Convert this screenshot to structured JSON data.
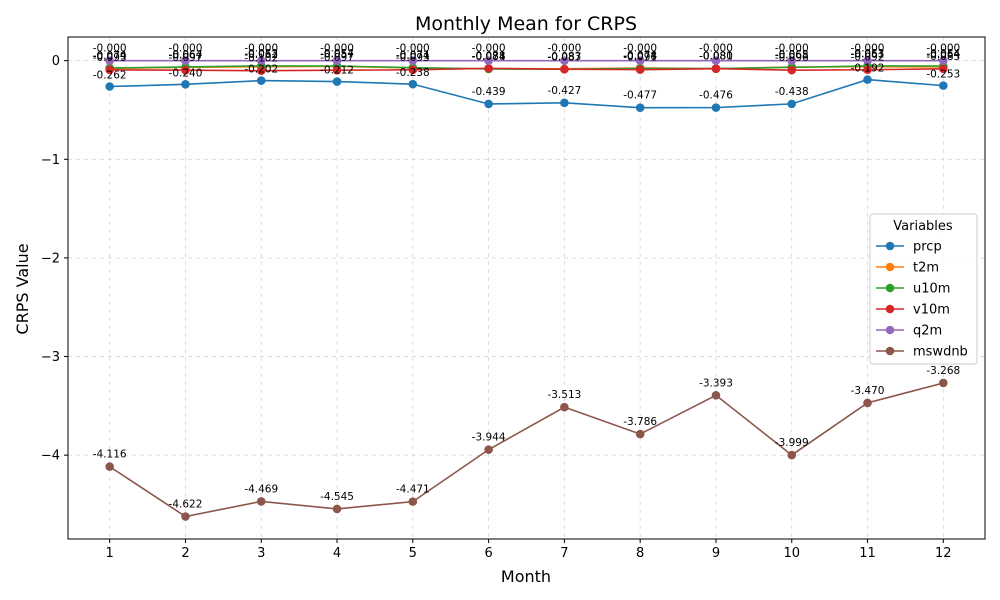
{
  "chart_data": {
    "type": "line",
    "title": "Monthly Mean for CRPS",
    "xlabel": "Month",
    "ylabel": "CRPS Value",
    "x": [
      1,
      2,
      3,
      4,
      5,
      6,
      7,
      8,
      9,
      10,
      11,
      12
    ],
    "xlim": [
      0.45,
      12.55
    ],
    "ylim": [
      -4.85,
      0.24
    ],
    "yticks": [
      0,
      -1,
      -2,
      -3,
      -4
    ],
    "ytick_labels": [
      "0",
      "−1",
      "−2",
      "−3",
      "−4"
    ],
    "grid": true,
    "legend_title": "Variables",
    "legend_position": "center-right",
    "series": [
      {
        "name": "prcp",
        "color": "#1f77b4",
        "values": [
          -0.262,
          -0.24,
          -0.202,
          -0.212,
          -0.238,
          -0.439,
          -0.427,
          -0.477,
          -0.476,
          -0.438,
          -0.192,
          -0.253
        ],
        "labels": [
          "-0.262",
          "-0.240",
          "-0.202",
          "-0.212",
          "-0.238",
          "-0.439",
          "-0.427",
          "-0.477",
          "-0.476",
          "-0.438",
          "-0.192",
          "-0.253"
        ],
        "label_pos": "below-first"
      },
      {
        "name": "t2m",
        "color": "#ff7f0e",
        "values": [
          -0.079,
          -0.067,
          -0.062,
          -0.057,
          -0.074,
          -0.081,
          -0.083,
          -0.074,
          -0.081,
          -0.065,
          -0.061,
          -0.064
        ],
        "labels": [
          "-0.079",
          "-0.067",
          "-0.062",
          "-0.057",
          "-0.074",
          "-0.081",
          "-0.083",
          "-0.074",
          "-0.081",
          "-0.065",
          "-0.061",
          "-0.064"
        ],
        "label_pos": "above"
      },
      {
        "name": "u10m",
        "color": "#2ca02c",
        "values": [
          -0.074,
          -0.064,
          -0.053,
          -0.054,
          -0.071,
          -0.084,
          -0.087,
          -0.078,
          -0.08,
          -0.068,
          -0.053,
          -0.054
        ],
        "labels": [
          "-0.074",
          "-0.064",
          "-0.053",
          "-0.054",
          "-0.071",
          "-0.084",
          "-0.087",
          "-0.078",
          "-0.080",
          "-0.068",
          "-0.053",
          "-0.054"
        ],
        "label_pos": "above"
      },
      {
        "name": "v10m",
        "color": "#d62728",
        "values": [
          -0.093,
          -0.097,
          -0.102,
          -0.097,
          -0.093,
          -0.078,
          -0.087,
          -0.091,
          -0.081,
          -0.096,
          -0.092,
          -0.083
        ],
        "labels": [
          "-0.093",
          "-0.097",
          "-0.102",
          "-0.097",
          "-0.093",
          "-0.078",
          "-0.087",
          "-0.091",
          "-0.081",
          "-0.096",
          "-0.092",
          "-0.083"
        ],
        "label_pos": "above"
      },
      {
        "name": "q2m",
        "color": "#9467bd",
        "values": [
          -0.0001,
          -0.0001,
          -0.0001,
          -0.0001,
          -0.0001,
          -0.0001,
          -0.0001,
          -0.0001,
          -0.0001,
          -0.0001,
          -0.0001,
          -0.0001
        ],
        "labels": [
          "-0.000",
          "-0.000",
          "-0.000",
          "-0.000",
          "-0.000",
          "-0.000",
          "-0.000",
          "-0.000",
          "-0.000",
          "-0.000",
          "-0.000",
          "-0.000"
        ],
        "label_pos": "above"
      },
      {
        "name": "mswdnb",
        "color": "#8c564b",
        "values": [
          -4.116,
          -4.622,
          -4.469,
          -4.545,
          -4.471,
          -3.944,
          -3.513,
          -3.786,
          -3.393,
          -3.999,
          -3.47,
          -3.268
        ],
        "labels": [
          "-4.116",
          "-4.622",
          "-4.469",
          "-4.545",
          "-4.471",
          "-3.944",
          "-3.513",
          "-3.786",
          "-3.393",
          "-3.999",
          "-3.470",
          "-3.268"
        ],
        "label_pos": "above"
      }
    ]
  }
}
